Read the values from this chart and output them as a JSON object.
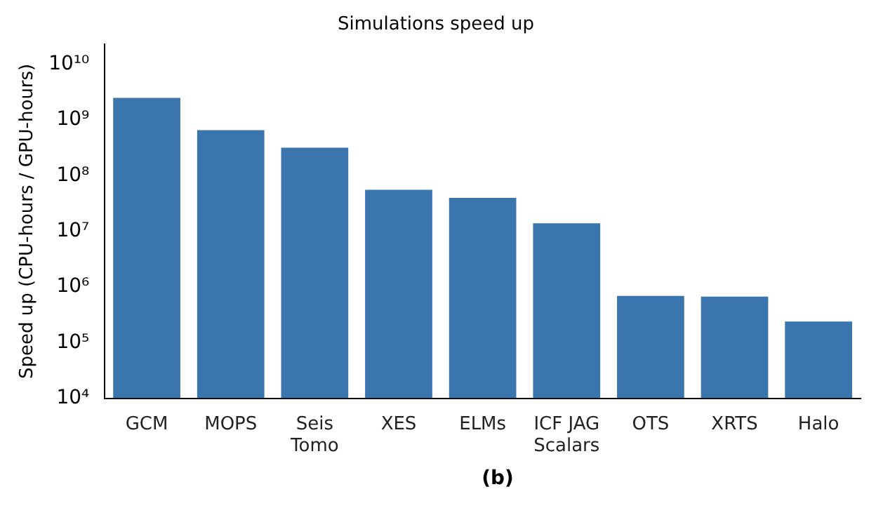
{
  "chart_data": {
    "type": "bar",
    "title": "Simulations speed up",
    "ylabel": "Speed up (CPU-hours / GPU-hours)",
    "categories": [
      "GCM",
      "MOPS",
      "Seis\nTomo",
      "XES",
      "ELMs",
      "ICF JAG\nScalars",
      "OTS",
      "XRTS",
      "Halo"
    ],
    "values": [
      2500000000,
      660000000,
      320000000,
      56000000,
      40000000,
      14000000,
      690000,
      670000,
      240000
    ],
    "color": "#3a75ae",
    "log": true,
    "ylim": [
      10000,
      23000000000
    ],
    "yticks": [
      {
        "value": 10000,
        "label": "10⁴"
      },
      {
        "value": 100000,
        "label": "10⁵"
      },
      {
        "value": 1000000,
        "label": "10⁶"
      },
      {
        "value": 10000000,
        "label": "10⁷"
      },
      {
        "value": 100000000,
        "label": "10⁸"
      },
      {
        "value": 1000000000,
        "label": "10⁹"
      },
      {
        "value": 10000000000,
        "label": "10¹⁰"
      }
    ],
    "grid": false,
    "legend": false,
    "annotations": [
      "(b)"
    ]
  }
}
